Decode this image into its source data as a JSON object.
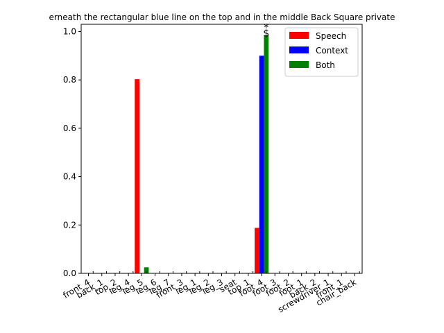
{
  "chart_data": {
    "type": "bar",
    "title": "erneath the rectangular blue line on the top and in the middle Back Square private",
    "xlabel": "",
    "ylabel": "",
    "ylim": [
      0,
      1.03
    ],
    "yticks": [
      "0.0",
      "0.2",
      "0.4",
      "0.6",
      "0.8",
      "1.0"
    ],
    "categories": [
      "front_4",
      "back_1",
      "top_2",
      "leg_4",
      "leg_5",
      "leg_6",
      "leg_7",
      "front_3",
      "leg_1",
      "leg_2",
      "leg_3",
      "seat",
      "top_1",
      "foot_4",
      "foot_3",
      "foot_2",
      "foot_1",
      "back_2",
      "screwdriver_1",
      "front_1",
      "chair_back"
    ],
    "series": [
      {
        "name": "Speech",
        "color": "#ff0000",
        "values": [
          0,
          0,
          0,
          0,
          0.803,
          0,
          0,
          0,
          0,
          0,
          0,
          0,
          0,
          0.188,
          0,
          0,
          0,
          0,
          0,
          0,
          0
        ]
      },
      {
        "name": "Context",
        "color": "#0000ff",
        "values": [
          0,
          0,
          0,
          0,
          0,
          0,
          0,
          0,
          0,
          0,
          0,
          0,
          0,
          0.9,
          0,
          0,
          0,
          0,
          0,
          0,
          0
        ]
      },
      {
        "name": "Both",
        "color": "#008000",
        "values": [
          0,
          0,
          0,
          0,
          0.025,
          0,
          0,
          0,
          0,
          0,
          0,
          0,
          0,
          0.985,
          0,
          0,
          0,
          0,
          0,
          0,
          0
        ]
      }
    ],
    "annotations": [
      {
        "category": "foot_4",
        "text": "*"
      },
      {
        "category": "foot_4",
        "text": "$"
      }
    ],
    "grid": false,
    "legend_position": "top-right"
  }
}
